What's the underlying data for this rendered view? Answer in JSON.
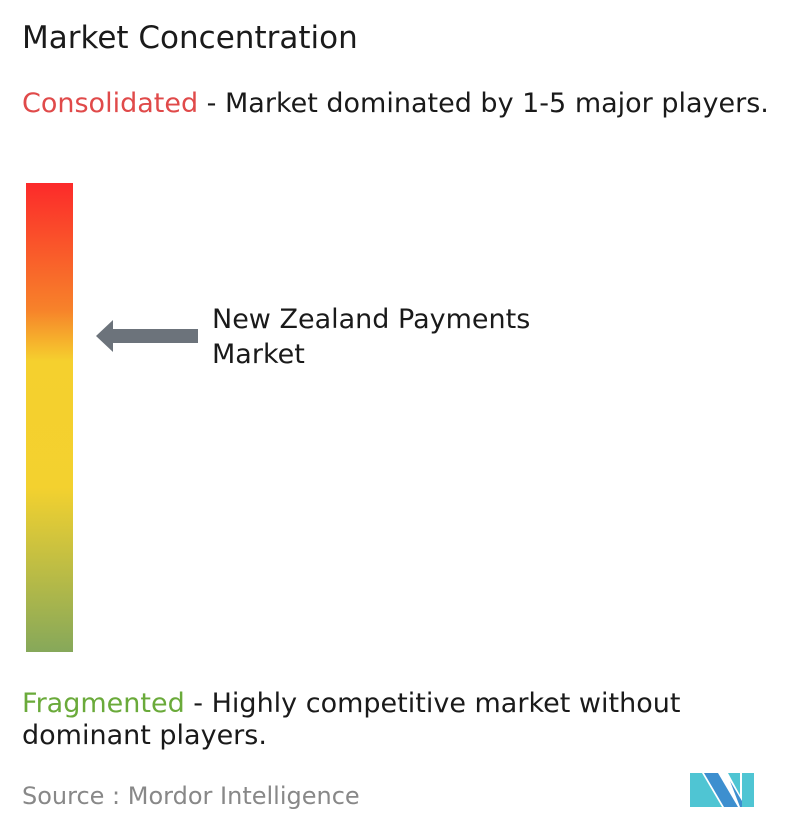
{
  "title": "Market Concentration",
  "consolidated": {
    "label": "Consolidated",
    "description": " - Market dominated by 1-5 major players.",
    "color": "#e04a4a"
  },
  "fragmented": {
    "label": "Fragmented",
    "description": " - Highly competitive market without dominant players.",
    "color": "#6aaa3a"
  },
  "scale": {
    "colors": [
      "#fc2a2a",
      "#f7822a",
      "#f5d02e",
      "#f3d12f",
      "#86a85a"
    ],
    "market_position_note": "arrow points near upper-middle (moderately consolidated)"
  },
  "market": {
    "label": "New Zealand Payments Market",
    "arrow_color": "#6c737b"
  },
  "source": {
    "text": "Source :  Mordor Intelligence"
  },
  "logo": {
    "name": "Mordor Intelligence logo",
    "colors": [
      "#3d8fcf",
      "#4fc5d3"
    ]
  }
}
